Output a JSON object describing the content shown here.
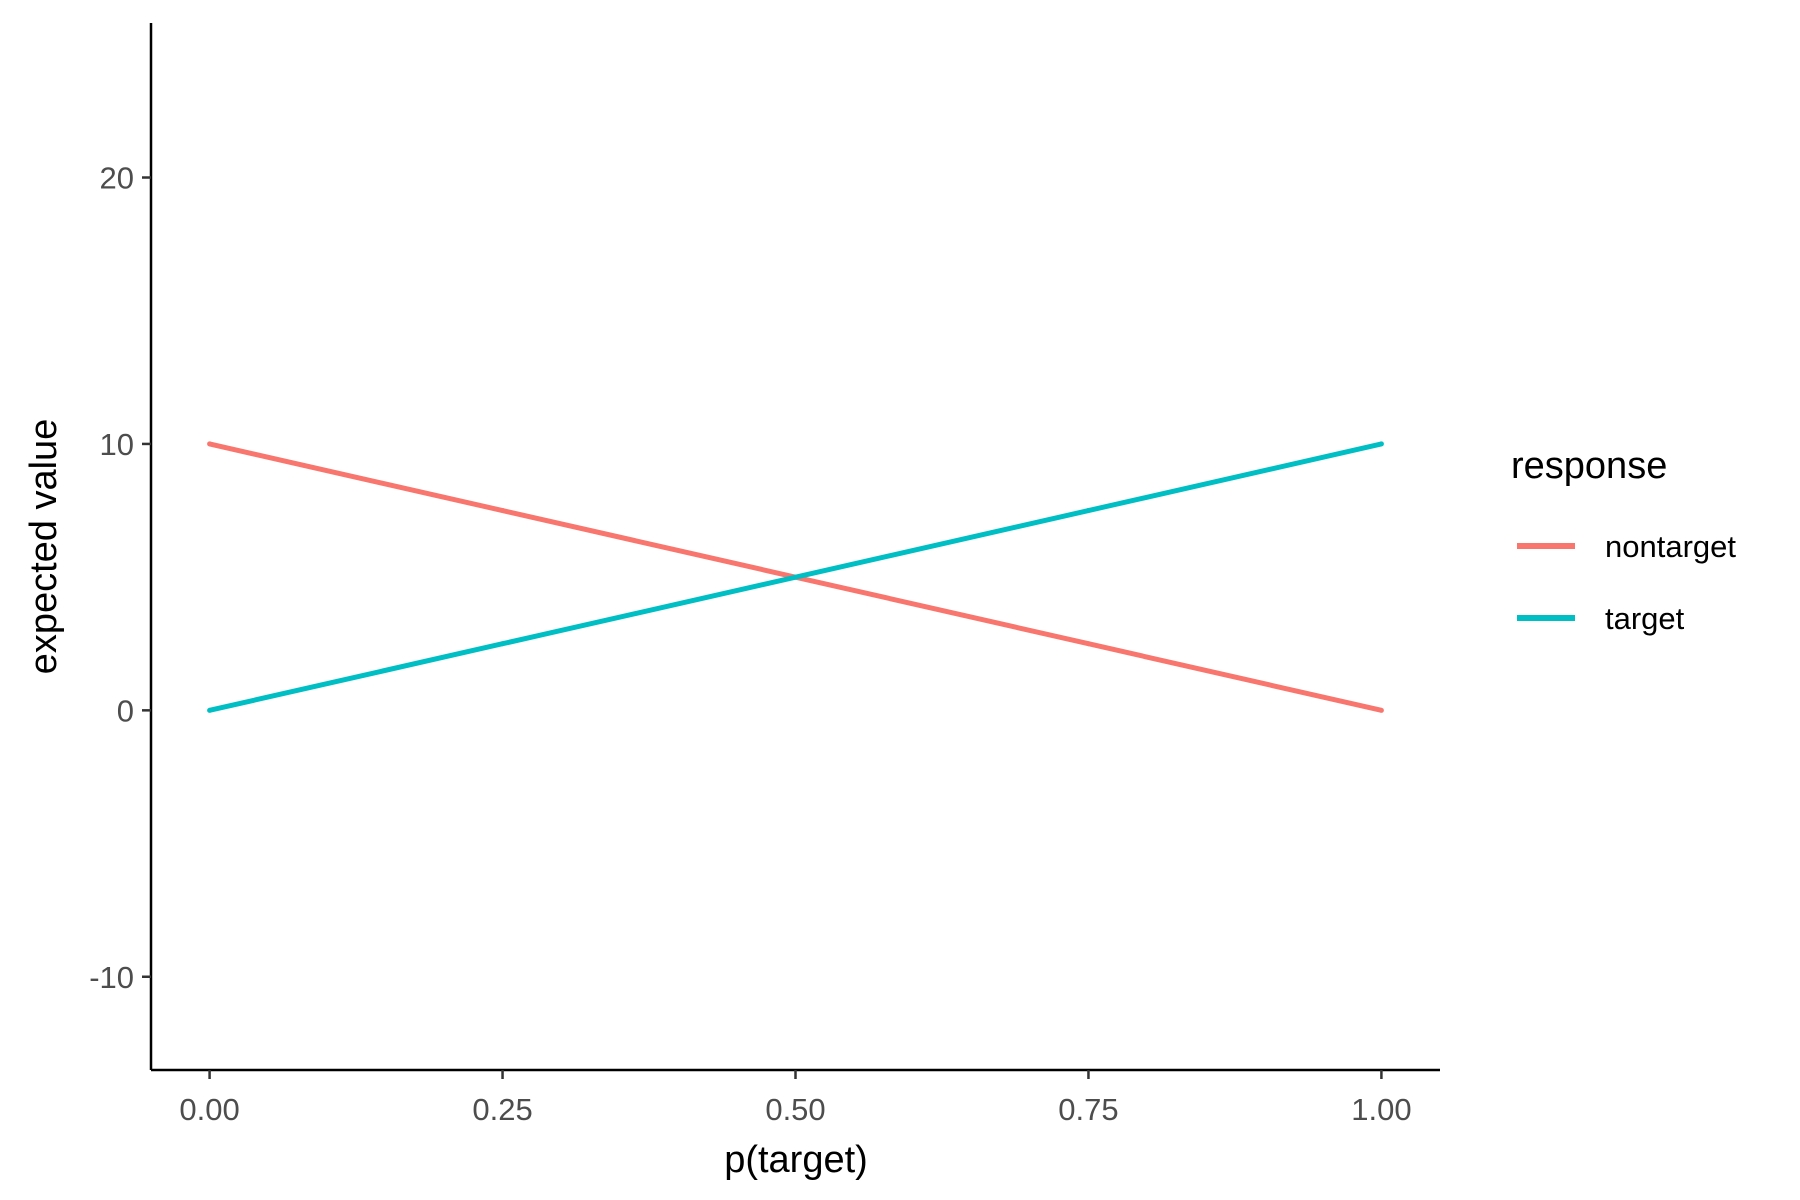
{
  "chart_data": {
    "type": "line",
    "xlabel": "p(target)",
    "ylabel": "expected value",
    "xlim": [
      -0.05,
      1.05
    ],
    "ylim": [
      -13.5,
      25.8
    ],
    "x_ticks": [
      0,
      0.25,
      0.5,
      0.75,
      1
    ],
    "x_tick_labels": [
      "0.00",
      "0.25",
      "0.50",
      "0.75",
      "1.00"
    ],
    "y_ticks": [
      -10,
      0,
      10,
      20
    ],
    "y_tick_labels": [
      "-10",
      "0",
      "10",
      "20"
    ],
    "grid": false,
    "legend": {
      "title": "response",
      "position": "right"
    },
    "series": [
      {
        "name": "nontarget",
        "color": "#F8766D",
        "x": [
          0,
          0.25,
          0.5,
          0.75,
          1
        ],
        "y": [
          10,
          7.5,
          5,
          2.5,
          0
        ]
      },
      {
        "name": "target",
        "color": "#00BFC4",
        "x": [
          0,
          0.25,
          0.5,
          0.75,
          1
        ],
        "y": [
          0,
          2.5,
          5,
          7.5,
          10
        ]
      }
    ]
  }
}
